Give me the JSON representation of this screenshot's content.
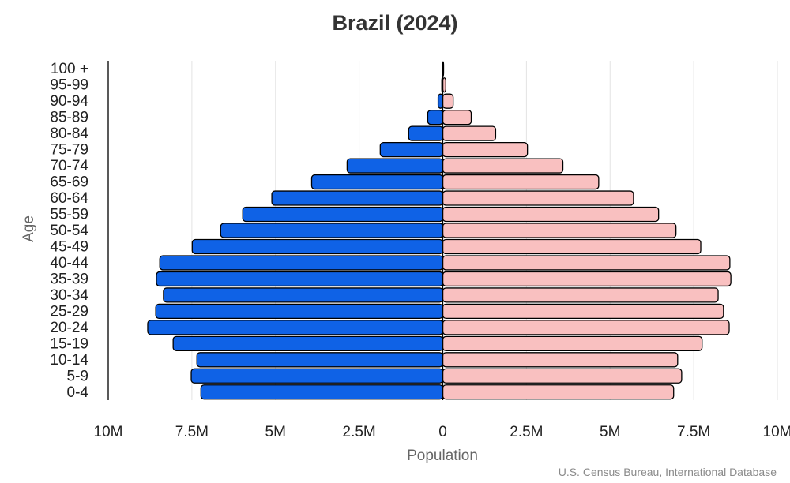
{
  "chart_data": {
    "type": "bar",
    "orientation": "horizontal-pyramid",
    "title": "Brazil (2024)",
    "xlabel": "Population",
    "ylabel": "Age",
    "source": "U.S. Census Bureau, International Database",
    "categories": [
      "0-4",
      "5-9",
      "10-14",
      "15-19",
      "20-24",
      "25-29",
      "30-34",
      "35-39",
      "40-44",
      "45-49",
      "50-54",
      "55-59",
      "60-64",
      "65-69",
      "70-74",
      "75-79",
      "80-84",
      "85-89",
      "90-94",
      "95-99",
      "100 +"
    ],
    "xlim": [
      -10000000,
      10000000
    ],
    "xticks": [
      -10000000,
      -7500000,
      -5000000,
      -2500000,
      0,
      2500000,
      5000000,
      7500000,
      10000000
    ],
    "xtick_labels": [
      "10M",
      "7.5M",
      "5M",
      "2.5M",
      "0",
      "2.5M",
      "5M",
      "7.5M",
      "10M"
    ],
    "grid": "vertical",
    "series": [
      {
        "side": "left",
        "color": "#0f62e6",
        "values": [
          7230000,
          7520000,
          7350000,
          8060000,
          8820000,
          8580000,
          8350000,
          8560000,
          8460000,
          7490000,
          6640000,
          5980000,
          5110000,
          3920000,
          2860000,
          1870000,
          1020000,
          450000,
          140000,
          30000,
          5000
        ]
      },
      {
        "side": "right",
        "color": "#f9c0c0",
        "values": [
          6900000,
          7140000,
          7020000,
          7750000,
          8560000,
          8390000,
          8230000,
          8610000,
          8580000,
          7710000,
          6970000,
          6450000,
          5700000,
          4660000,
          3590000,
          2530000,
          1580000,
          850000,
          310000,
          90000,
          20000
        ]
      }
    ]
  }
}
